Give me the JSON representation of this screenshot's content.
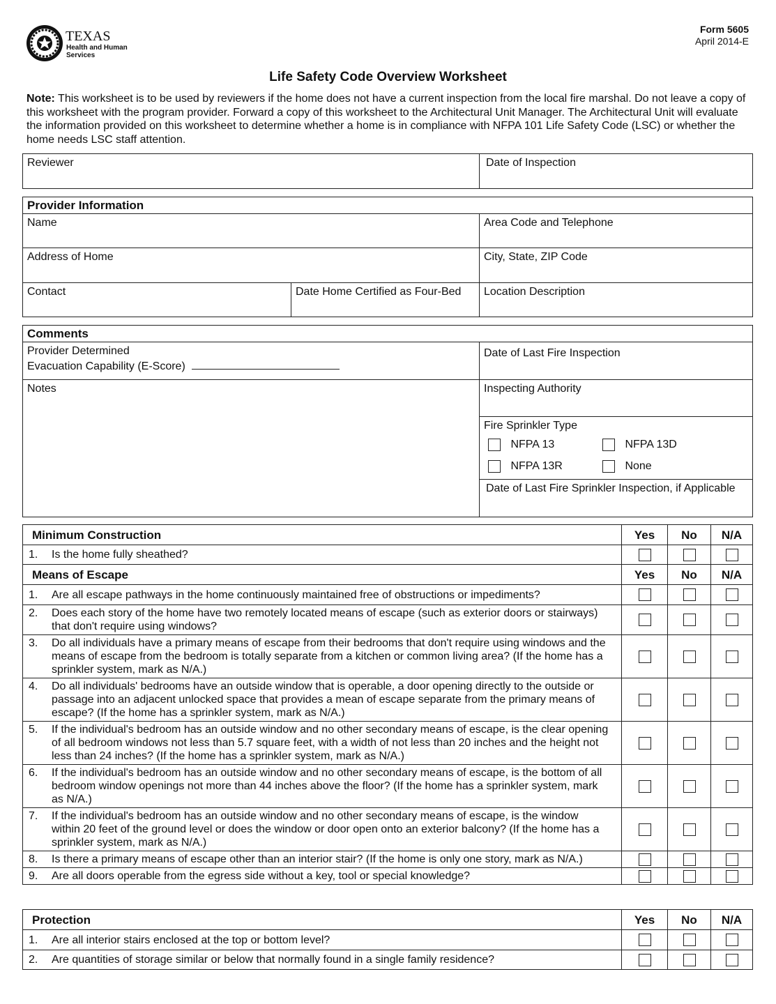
{
  "header": {
    "logo_text": "TEXAS",
    "logo_subtext": "Health and Human Services",
    "form_number": "Form 5605",
    "form_date": "April 2014-E",
    "title": "Life Safety Code Overview Worksheet",
    "note_label": "Note:",
    "note_text": " This worksheet is to be used by reviewers if the home does not have a current inspection from the local fire marshal.  Do not leave a copy of this worksheet with the program provider.  Forward a copy of this worksheet to the Architectural Unit Manager. The Architectural Unit will evaluate the information provided on this worksheet to determine whether a home is in compliance with NFPA 101 Life Safety Code (LSC) or whether the home needs LSC staff attention."
  },
  "review": {
    "reviewer": "Reviewer",
    "date_of_inspection": "Date of Inspection"
  },
  "provider": {
    "heading": "Provider Information",
    "name": "Name",
    "phone": "Area Code and Telephone",
    "address": "Address of Home",
    "city": "City, State, ZIP Code",
    "contact": "Contact",
    "date_certified": "Date Home Certified as Four-Bed",
    "location": "Location Description"
  },
  "comments": {
    "heading": "Comments",
    "escore_line1": "Provider Determined",
    "escore_line2": "Evacuation Capability (E-Score)",
    "last_fire_inspection": "Date of Last Fire Inspection",
    "notes": "Notes",
    "inspecting_authority": "Inspecting Authority",
    "sprinkler_type": "Fire Sprinkler Type",
    "sprinkler_options": [
      "NFPA 13",
      "NFPA 13D",
      "NFPA 13R",
      "None"
    ],
    "last_sprinkler_inspection": "Date of Last Fire Sprinkler Inspection, if Applicable"
  },
  "columns": {
    "yes": "Yes",
    "no": "No",
    "na": "N/A"
  },
  "sections": [
    {
      "heading": "Minimum Construction",
      "questions": [
        {
          "num": "1.",
          "text": "Is the home fully sheathed?"
        }
      ]
    },
    {
      "heading": "Means of Escape",
      "questions": [
        {
          "num": "1.",
          "text": "Are all escape pathways in the home continuously maintained free of obstructions or impediments?"
        },
        {
          "num": "2.",
          "text": "Does each story of the home have two remotely located means of escape (such as exterior doors or stairways) that don't require using windows?"
        },
        {
          "num": "3.",
          "text": "Do all individuals have a primary means of escape from their bedrooms that don't require using windows and the means of escape from the bedroom is totally separate from a kitchen or common living area? (If the home has a sprinkler system, mark as N/A.)"
        },
        {
          "num": "4.",
          "text": "Do all individuals' bedrooms have an outside window that is operable, a door opening directly to the outside or passage into an adjacent unlocked space that provides a mean of escape separate from the primary means of escape? (If the home has a sprinkler system, mark as N/A.)"
        },
        {
          "num": "5.",
          "text": "If the individual's bedroom has an outside window and no other secondary means of escape, is the clear opening of all bedroom windows not less than 5.7 square feet, with a width of not less than 20 inches and the height not less than 24 inches? (If the home has a sprinkler system, mark as N/A.)"
        },
        {
          "num": "6.",
          "text": "If the individual's bedroom has an outside window and no other secondary means of escape, is the bottom of all bedroom window openings not more than 44 inches above the floor? (If the home has a sprinkler system, mark as N/A.)"
        },
        {
          "num": "7.",
          "text": "If the individual's bedroom has an outside window and no other secondary means of escape, is the window within 20 feet of the ground level or does the window or door open onto an exterior balcony? (If the home has a sprinkler system, mark as N/A.)"
        },
        {
          "num": "8.",
          "text": "Is there a primary means of escape other than an interior stair? (If the home is only one story, mark as N/A.)"
        },
        {
          "num": "9.",
          "text": "Are all doors operable from the egress side without a key, tool or special knowledge?"
        }
      ]
    },
    {
      "heading": "Protection",
      "questions": [
        {
          "num": "1.",
          "text": "Are all interior stairs enclosed at the top or bottom level?"
        },
        {
          "num": "2.",
          "text": "Are quantities of storage similar or below that normally found in a single family residence?"
        }
      ]
    }
  ]
}
